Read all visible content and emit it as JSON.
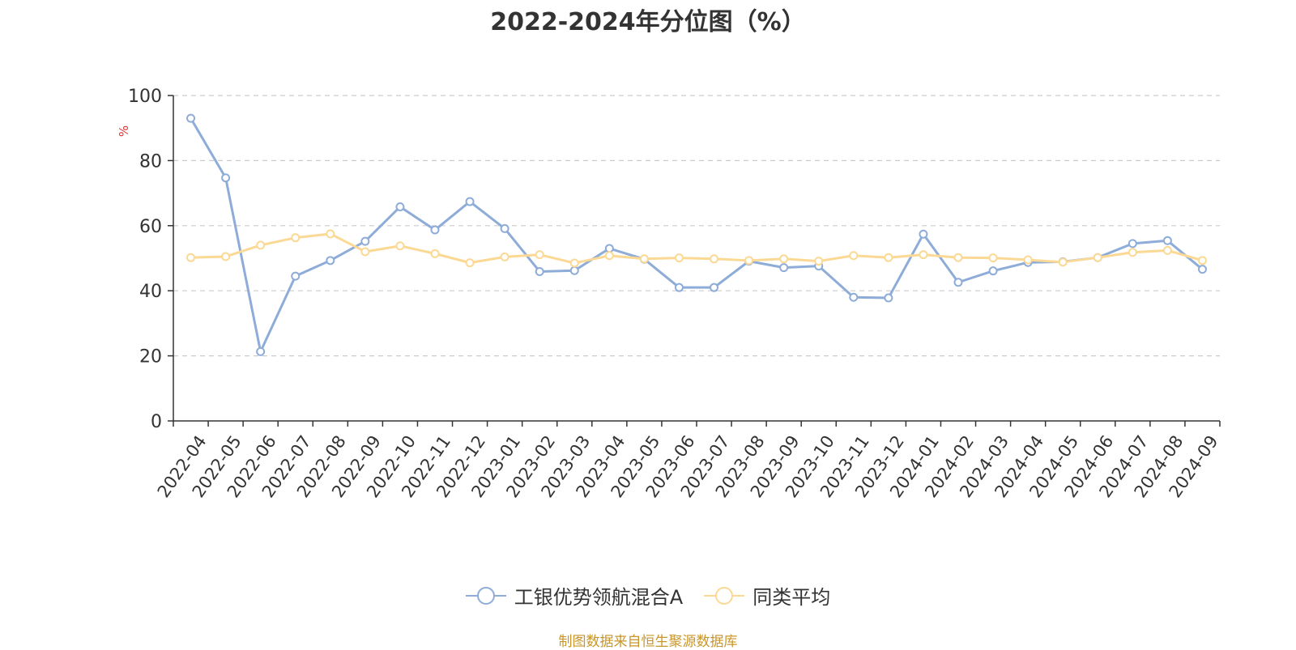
{
  "chart_data": {
    "type": "line",
    "title": "2022-2024年分位图（%）",
    "ylabel": "%",
    "xlabel": "",
    "ylim": [
      0,
      100
    ],
    "yticks": [
      0,
      20,
      40,
      60,
      80,
      100
    ],
    "grid": true,
    "legend_position": "bottom",
    "categories": [
      "2022-04",
      "2022-05",
      "2022-06",
      "2022-07",
      "2022-08",
      "2022-09",
      "2022-10",
      "2022-11",
      "2022-12",
      "2023-01",
      "2023-02",
      "2023-03",
      "2023-04",
      "2023-05",
      "2023-06",
      "2023-07",
      "2023-08",
      "2023-09",
      "2023-10",
      "2023-11",
      "2023-12",
      "2024-01",
      "2024-02",
      "2024-03",
      "2024-04",
      "2024-05",
      "2024-06",
      "2024-07",
      "2024-08",
      "2024-09"
    ],
    "series": [
      {
        "name": "工银优势领航混合A",
        "color": "#8eacd8",
        "values": [
          93.0,
          74.7,
          21.3,
          44.5,
          49.3,
          55.2,
          65.8,
          58.7,
          67.4,
          59.1,
          45.9,
          46.2,
          53.0,
          49.7,
          41.0,
          41.0,
          49.1,
          47.1,
          47.6,
          38.0,
          37.8,
          57.4,
          42.6,
          46.1,
          48.7,
          48.9,
          50.2,
          54.5,
          55.4,
          46.6
        ]
      },
      {
        "name": "同类平均",
        "color": "#fbd994",
        "values": [
          50.2,
          50.5,
          54.0,
          56.3,
          57.5,
          52.0,
          53.8,
          51.4,
          48.6,
          50.4,
          51.1,
          48.5,
          50.8,
          49.8,
          50.1,
          49.8,
          49.3,
          49.8,
          49.1,
          50.8,
          50.2,
          51.1,
          50.2,
          50.1,
          49.5,
          48.8,
          50.2,
          51.8,
          52.4,
          49.3
        ]
      }
    ]
  },
  "source_note": "制图数据来自恒生聚源数据库"
}
